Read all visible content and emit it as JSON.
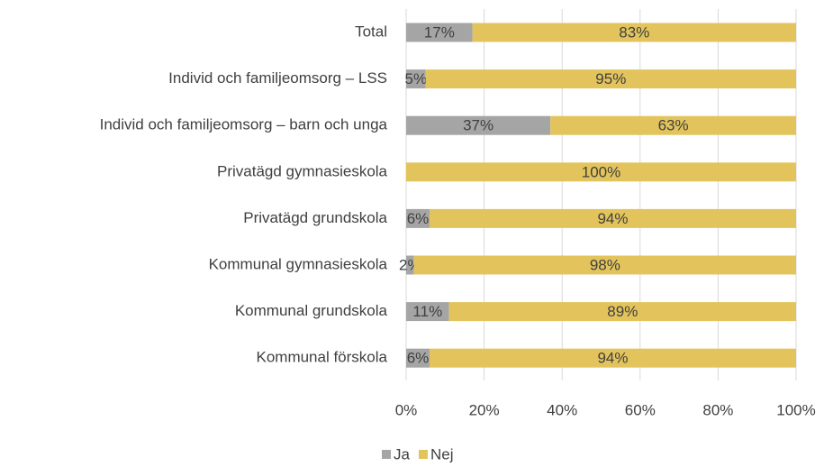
{
  "chart_data": {
    "type": "stacked-bar-horizontal",
    "categories": [
      "Total",
      "Individ och familjeomsorg – LSS",
      "Individ och familjeomsorg – barn och unga",
      "Privatägd gymnasieskola",
      "Privatägd grundskola",
      "Kommunal gymnasieskola",
      "Kommunal grundskola",
      "Kommunal förskola"
    ],
    "series": [
      {
        "name": "Ja",
        "color": "#a5a5a5",
        "values": [
          17,
          5,
          37,
          0,
          6,
          2,
          11,
          6
        ],
        "value_labels": [
          "17%",
          "5%",
          "37%",
          null,
          "6%",
          "2%",
          "11%",
          "6%"
        ]
      },
      {
        "name": "Nej",
        "color": "#e3c45c",
        "values": [
          83,
          95,
          63,
          100,
          94,
          98,
          89,
          94
        ],
        "value_labels": [
          "83%",
          "95%",
          "63%",
          "100%",
          "94%",
          "98%",
          "89%",
          "94%"
        ]
      }
    ],
    "xlim": [
      0,
      100
    ],
    "xticks": [
      {
        "value": 0,
        "label": "0%"
      },
      {
        "value": 20,
        "label": "20%"
      },
      {
        "value": 40,
        "label": "40%"
      },
      {
        "value": 60,
        "label": "60%"
      },
      {
        "value": 80,
        "label": "80%"
      },
      {
        "value": 100,
        "label": "100%"
      }
    ],
    "grid": true,
    "legend": "bottom"
  }
}
